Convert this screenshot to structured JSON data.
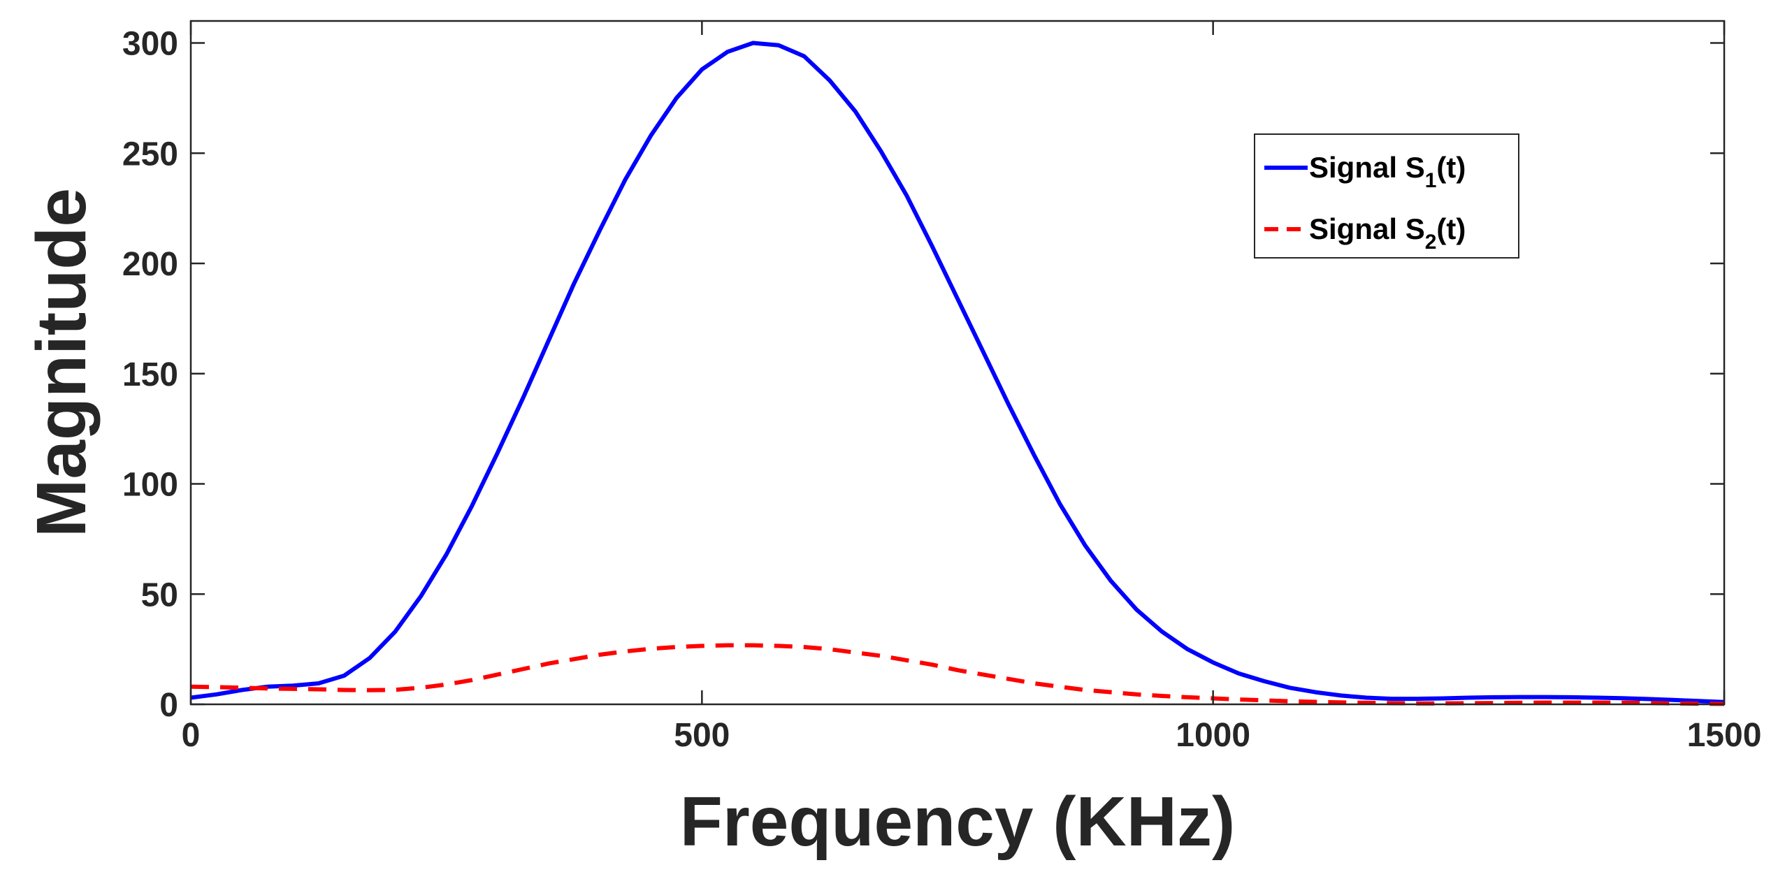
{
  "chart_data": {
    "type": "line",
    "title": "",
    "xlabel": "Frequency (KHz)",
    "ylabel": "Magnitude",
    "xlim": [
      0,
      1500
    ],
    "ylim": [
      0,
      310
    ],
    "xticks": [
      0,
      500,
      1000,
      1500
    ],
    "yticks": [
      0,
      50,
      100,
      150,
      200,
      250,
      300
    ],
    "grid": false,
    "legend_location": "top-right",
    "series": [
      {
        "name": "Signal S1(t)",
        "legend_main": "Signal S",
        "legend_sub": "1",
        "legend_tail": "(t)",
        "color": "#0000ff",
        "style": "solid",
        "x": [
          0,
          25,
          50,
          75,
          100,
          125,
          150,
          175,
          200,
          225,
          250,
          275,
          300,
          325,
          350,
          375,
          400,
          425,
          450,
          475,
          500,
          525,
          550,
          575,
          600,
          625,
          650,
          675,
          700,
          725,
          750,
          775,
          800,
          825,
          850,
          875,
          900,
          925,
          950,
          975,
          1000,
          1025,
          1050,
          1075,
          1100,
          1125,
          1150,
          1175,
          1200,
          1225,
          1250,
          1275,
          1300,
          1325,
          1350,
          1375,
          1400,
          1425,
          1450,
          1475,
          1500
        ],
        "y": [
          3,
          4.5,
          6.5,
          8,
          8.5,
          9.5,
          13,
          21,
          33,
          49,
          68,
          90,
          114,
          139,
          165,
          191,
          215,
          238,
          258,
          275,
          288,
          296,
          300,
          299,
          294,
          283,
          269,
          251,
          231,
          208,
          184,
          160,
          136,
          113,
          91,
          72,
          56,
          43,
          33,
          25,
          19,
          14,
          10.5,
          7.5,
          5.5,
          4,
          3,
          2.5,
          2.5,
          2.7,
          3,
          3.2,
          3.3,
          3.3,
          3.2,
          3,
          2.8,
          2.4,
          2,
          1.5,
          1
        ]
      },
      {
        "name": "Signal S2(t)",
        "legend_main": "Signal S",
        "legend_sub": "2",
        "legend_tail": "(t)",
        "color": "#ff0000",
        "style": "dashed",
        "x": [
          0,
          25,
          50,
          75,
          100,
          125,
          150,
          175,
          200,
          225,
          250,
          275,
          300,
          325,
          350,
          375,
          400,
          425,
          450,
          475,
          500,
          525,
          550,
          575,
          600,
          625,
          650,
          675,
          700,
          725,
          750,
          775,
          800,
          825,
          850,
          875,
          900,
          925,
          950,
          975,
          1000,
          1025,
          1050,
          1075,
          1100,
          1125,
          1150,
          1175,
          1200,
          1225,
          1250,
          1275,
          1300,
          1325,
          1350,
          1375,
          1400,
          1425,
          1450,
          1475,
          1500
        ],
        "y": [
          8,
          7.8,
          7.5,
          7.2,
          7,
          6.8,
          6.5,
          6.4,
          6.6,
          7.5,
          9,
          11,
          13.5,
          16,
          18.5,
          20.5,
          22.5,
          24,
          25.2,
          26,
          26.5,
          26.8,
          26.8,
          26.5,
          26,
          25,
          23.5,
          22,
          20,
          18,
          15.5,
          13.5,
          11.5,
          9.5,
          8,
          6.5,
          5.5,
          4.5,
          3.8,
          3.2,
          2.7,
          2.2,
          1.8,
          1.4,
          1.1,
          0.9,
          0.7,
          0.5,
          0.4,
          0.4,
          0.5,
          0.6,
          0.7,
          0.8,
          0.8,
          0.8,
          0.7,
          0.6,
          0.4,
          0.3,
          0.2
        ]
      }
    ]
  }
}
